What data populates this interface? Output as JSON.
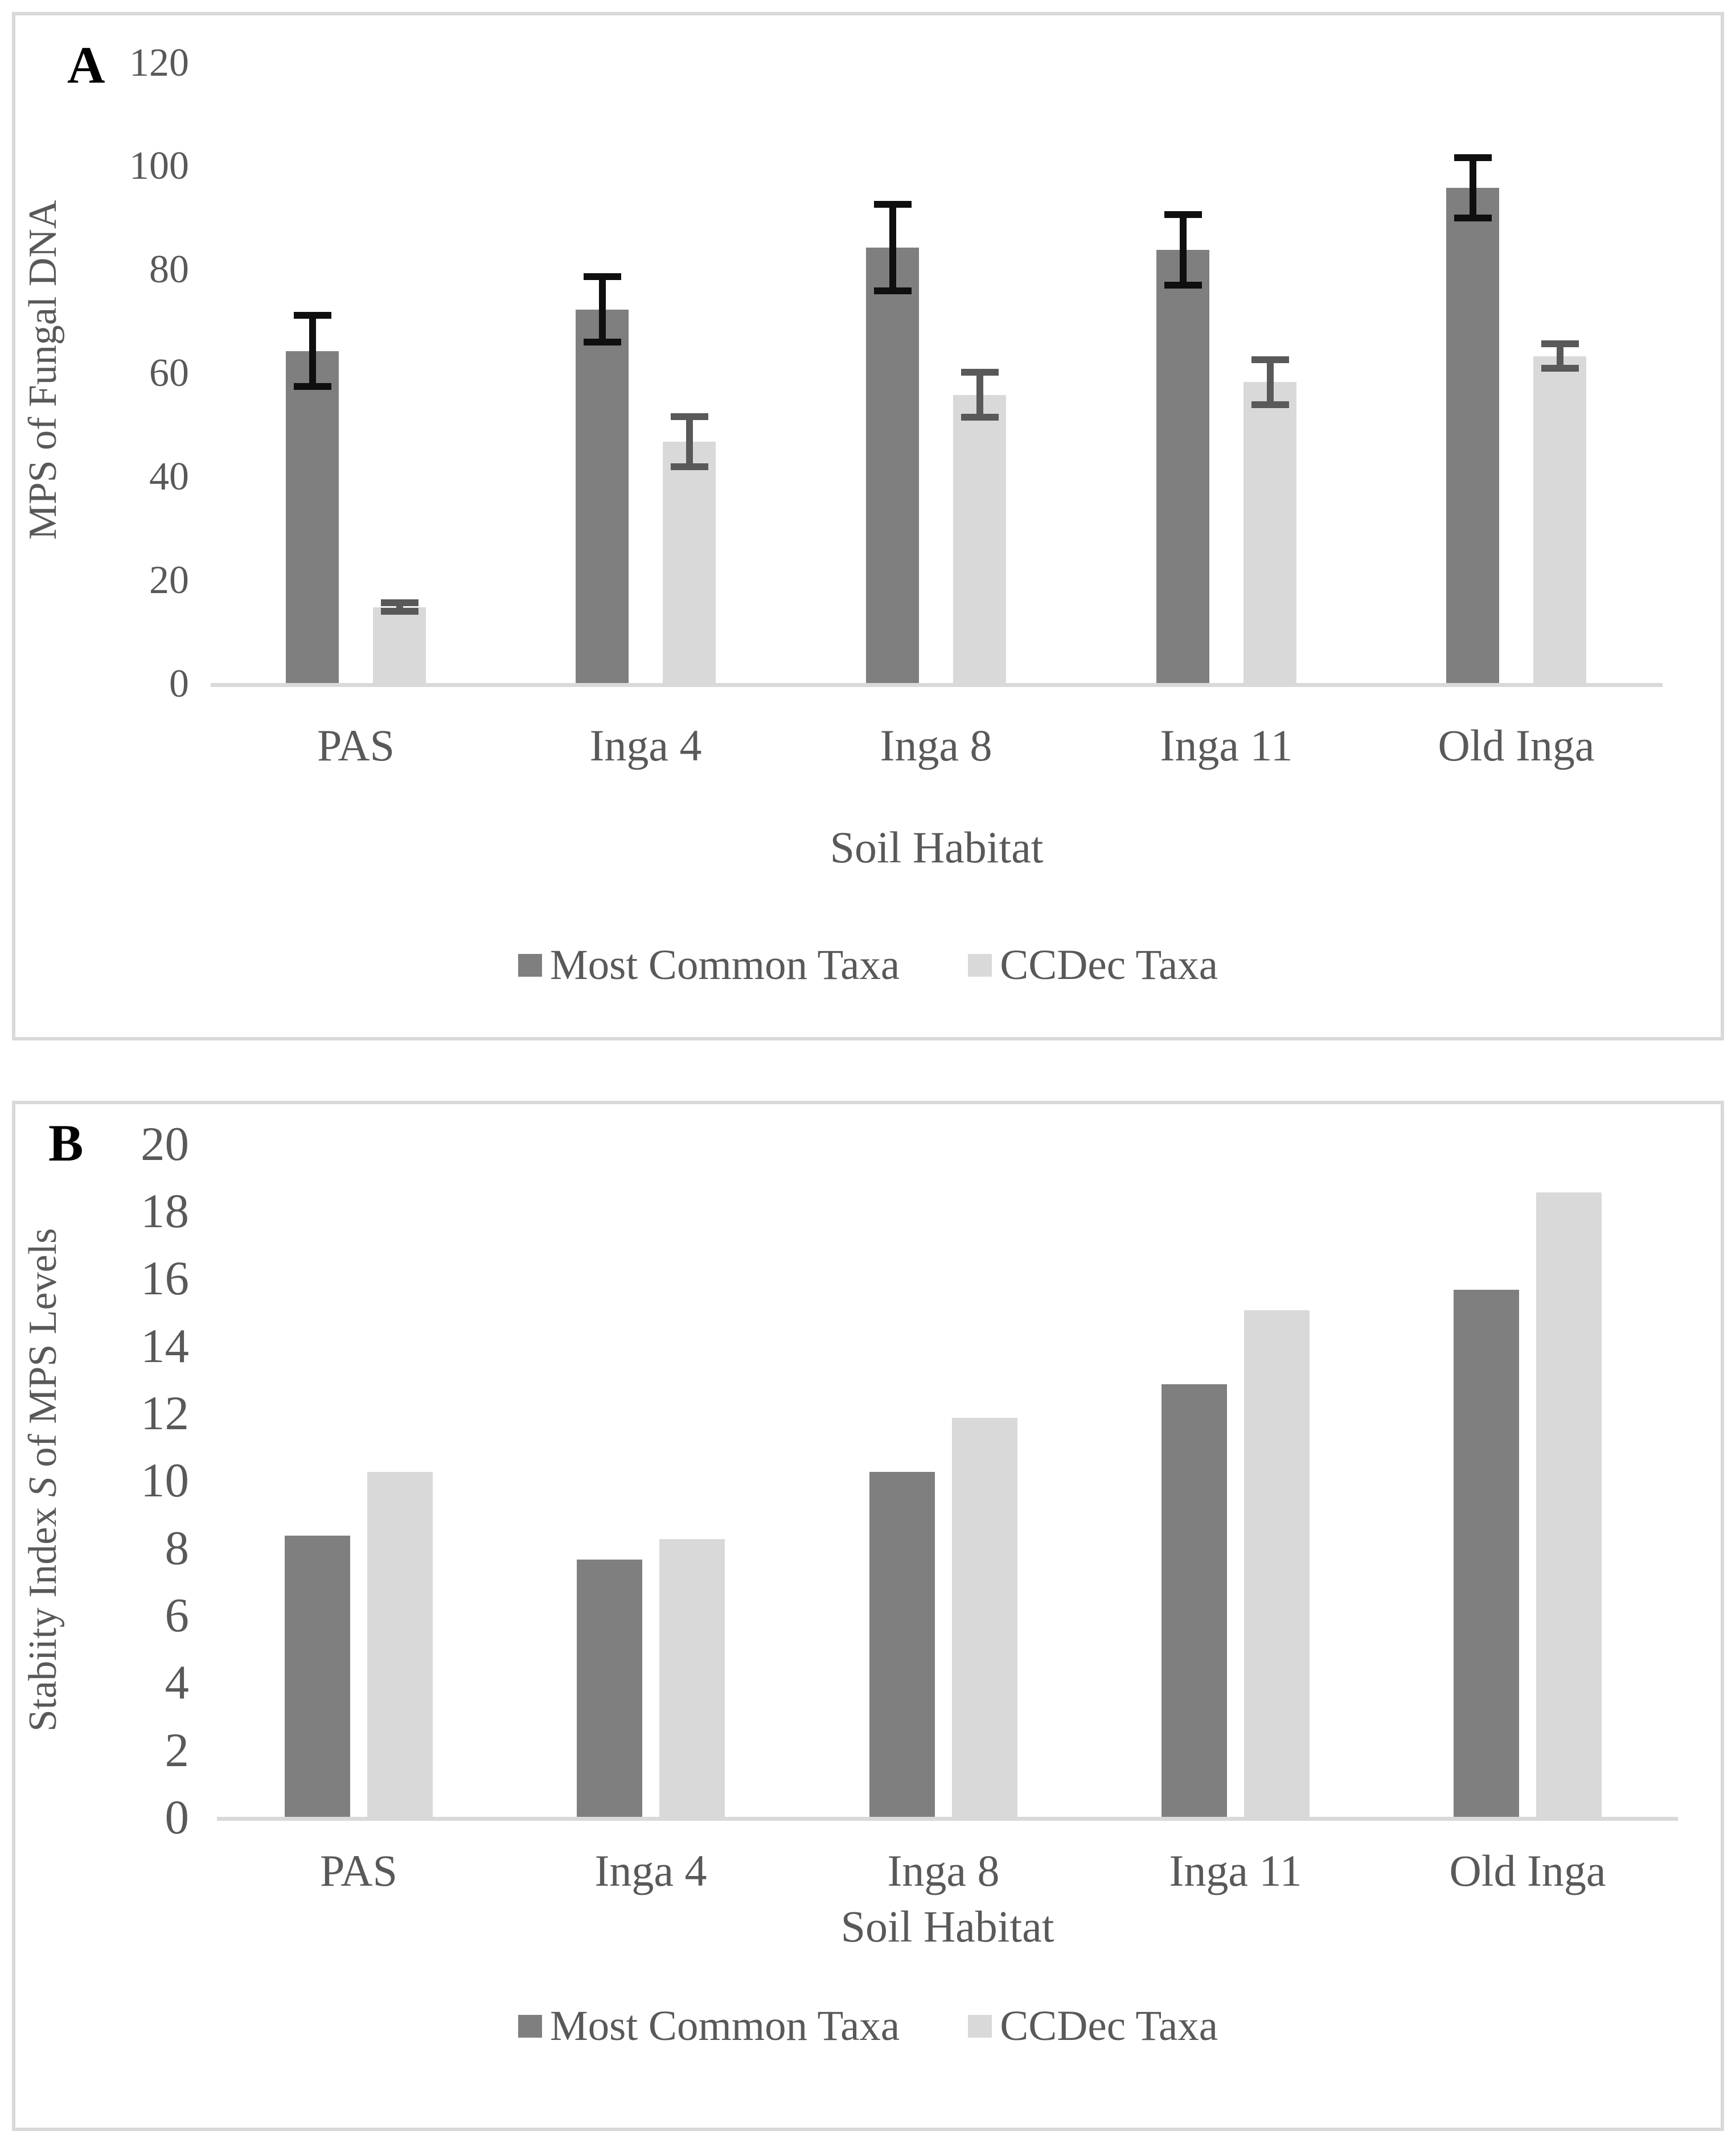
{
  "style": {
    "text_color": "#595959",
    "axis_color": "#d9d9d9",
    "panel_border_color": "#d9d9d9",
    "background": "#ffffff",
    "bar_dark": "#7f7f7f",
    "bar_light": "#d9d9d9",
    "error_bar_dark": "#0f0f0f",
    "error_bar_light": "#595959",
    "panel_label_color": "#000000"
  },
  "chart_data": [
    {
      "type": "bar",
      "panel_label": "A",
      "title": "",
      "categories": [
        "PAS",
        "Inga 4",
        "Inga 8",
        "Inga 11",
        "Old Inga"
      ],
      "series": [
        {
          "name": "Most Common Taxa",
          "color": "#7f7f7f",
          "values": [
            64.5,
            72.5,
            84.5,
            84,
            96
          ],
          "errors": [
            7.5,
            7,
            9,
            7.5,
            6.5
          ],
          "error_color": "#0f0f0f"
        },
        {
          "name": "CCDec Taxa",
          "color": "#d9d9d9",
          "values": [
            15,
            47,
            56,
            58.5,
            63.5
          ],
          "errors": [
            1.5,
            5.5,
            5,
            5,
            3
          ],
          "error_color": "#595959"
        }
      ],
      "xlabel": "Soil Habitat",
      "ylabel": "MPS of Fungal DNA",
      "ylabel_parts": {
        "prefix": "MPS of Fungal DNA",
        "italic": "",
        "suffix": ""
      },
      "ylim": [
        0,
        120
      ],
      "ytick_step": 20,
      "grid": false,
      "error_bars": true,
      "legend_position": "bottom"
    },
    {
      "type": "bar",
      "panel_label": "B",
      "title": "",
      "categories": [
        "PAS",
        "Inga 4",
        "Inga 8",
        "Inga 11",
        "Old Inga"
      ],
      "series": [
        {
          "name": "Most Common Taxa",
          "color": "#7f7f7f",
          "values": [
            8.4,
            7.7,
            10.3,
            12.9,
            15.7
          ]
        },
        {
          "name": "CCDec Taxa",
          "color": "#d9d9d9",
          "values": [
            10.3,
            8.3,
            11.9,
            15.1,
            18.6
          ]
        }
      ],
      "xlabel": "Soil Habitat",
      "ylabel": "Stabiity Index S of MPS Levels",
      "ylabel_parts": {
        "prefix": "Stabiity Index ",
        "italic": "S",
        "suffix": " of MPS Levels"
      },
      "ylim": [
        0,
        20
      ],
      "ytick_step": 2,
      "grid": false,
      "error_bars": false,
      "legend_position": "bottom"
    }
  ]
}
